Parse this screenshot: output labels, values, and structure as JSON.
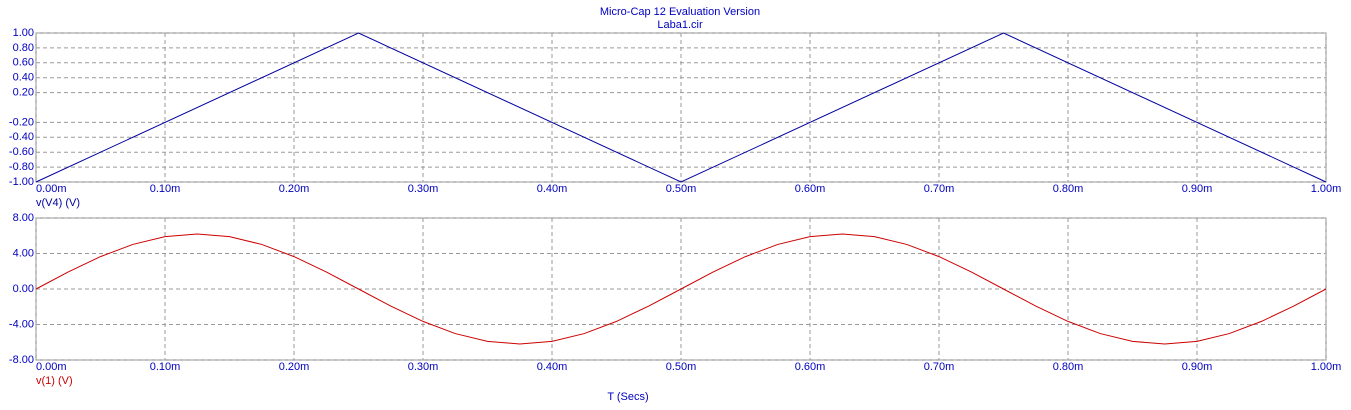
{
  "chart_data": [
    {
      "type": "line",
      "title": "Micro-Cap 12 Evaluation Version",
      "subtitle": "Laba1.cir",
      "x": [
        0,
        0.00025,
        0.0005,
        0.00075,
        0.001
      ],
      "series": [
        {
          "name": "v(V4) (V)",
          "color": "#0000a0",
          "values": [
            -1,
            1,
            -1,
            1,
            -1
          ]
        }
      ],
      "xlim": [
        0,
        0.001
      ],
      "xticks": [
        {
          "value": 0,
          "label": "0.00m"
        },
        {
          "value": 0.0001,
          "label": "0.10m"
        },
        {
          "value": 0.0002,
          "label": "0.20m"
        },
        {
          "value": 0.0003,
          "label": "0.30m"
        },
        {
          "value": 0.0004,
          "label": "0.40m"
        },
        {
          "value": 0.0005,
          "label": "0.50m"
        },
        {
          "value": 0.0006,
          "label": "0.60m"
        },
        {
          "value": 0.0007,
          "label": "0.70m"
        },
        {
          "value": 0.0008,
          "label": "0.80m"
        },
        {
          "value": 0.0009,
          "label": "0.90m"
        },
        {
          "value": 0.001,
          "label": "1.00m"
        }
      ],
      "ylim": [
        -1,
        1
      ],
      "yticks": [
        {
          "value": 1,
          "label": "1.00"
        },
        {
          "value": 0.8,
          "label": "0.80"
        },
        {
          "value": 0.6,
          "label": "0.60"
        },
        {
          "value": 0.4,
          "label": "0.40"
        },
        {
          "value": 0.2,
          "label": "0.20"
        },
        {
          "value": -0.2,
          "label": "-0.20"
        },
        {
          "value": -0.4,
          "label": "-0.40"
        },
        {
          "value": -0.6,
          "label": "-0.60"
        },
        {
          "value": -0.8,
          "label": "-0.80"
        },
        {
          "value": -1,
          "label": "-1.00"
        }
      ],
      "grid": true
    },
    {
      "type": "line",
      "xlabel": "T (Secs)",
      "x": [
        0,
        2.5e-05,
        5e-05,
        7.5e-05,
        0.0001,
        0.000125,
        0.00015,
        0.000175,
        0.0002,
        0.000225,
        0.00025,
        0.000275,
        0.0003,
        0.000325,
        0.00035,
        0.000375,
        0.0004,
        0.000425,
        0.00045,
        0.000475,
        0.0005,
        0.000525,
        0.00055,
        0.000575,
        0.0006,
        0.000625,
        0.00065,
        0.000675,
        0.0007,
        0.000725,
        0.00075,
        0.000775,
        0.0008,
        0.000825,
        0.00085,
        0.000875,
        0.0009,
        0.000925,
        0.00095,
        0.000975,
        0.001
      ],
      "series": [
        {
          "name": "v(1) (V)",
          "color": "#cc0000",
          "values": [
            0,
            1.92,
            3.65,
            5.02,
            5.9,
            6.2,
            5.9,
            5.02,
            3.65,
            1.92,
            0,
            -1.92,
            -3.65,
            -5.02,
            -5.9,
            -6.2,
            -5.9,
            -5.02,
            -3.65,
            -1.92,
            0,
            1.92,
            3.65,
            5.02,
            5.9,
            6.2,
            5.9,
            5.02,
            3.65,
            1.92,
            0,
            -1.92,
            -3.65,
            -5.02,
            -5.9,
            -6.2,
            -5.9,
            -5.02,
            -3.65,
            -1.92,
            0
          ]
        }
      ],
      "xlim": [
        0,
        0.001
      ],
      "xticks": [
        {
          "value": 0,
          "label": "0.00m"
        },
        {
          "value": 0.0001,
          "label": "0.10m"
        },
        {
          "value": 0.0002,
          "label": "0.20m"
        },
        {
          "value": 0.0003,
          "label": "0.30m"
        },
        {
          "value": 0.0004,
          "label": "0.40m"
        },
        {
          "value": 0.0005,
          "label": "0.50m"
        },
        {
          "value": 0.0006,
          "label": "0.60m"
        },
        {
          "value": 0.0007,
          "label": "0.70m"
        },
        {
          "value": 0.0008,
          "label": "0.80m"
        },
        {
          "value": 0.0009,
          "label": "0.90m"
        },
        {
          "value": 0.001,
          "label": "1.00m"
        }
      ],
      "ylim": [
        -8,
        8
      ],
      "yticks": [
        {
          "value": 8,
          "label": "8.00"
        },
        {
          "value": 4,
          "label": "4.00"
        },
        {
          "value": 0,
          "label": "0.00"
        },
        {
          "value": -4,
          "label": "-4.00"
        },
        {
          "value": -8,
          "label": "-8.00"
        }
      ],
      "grid": true
    }
  ]
}
